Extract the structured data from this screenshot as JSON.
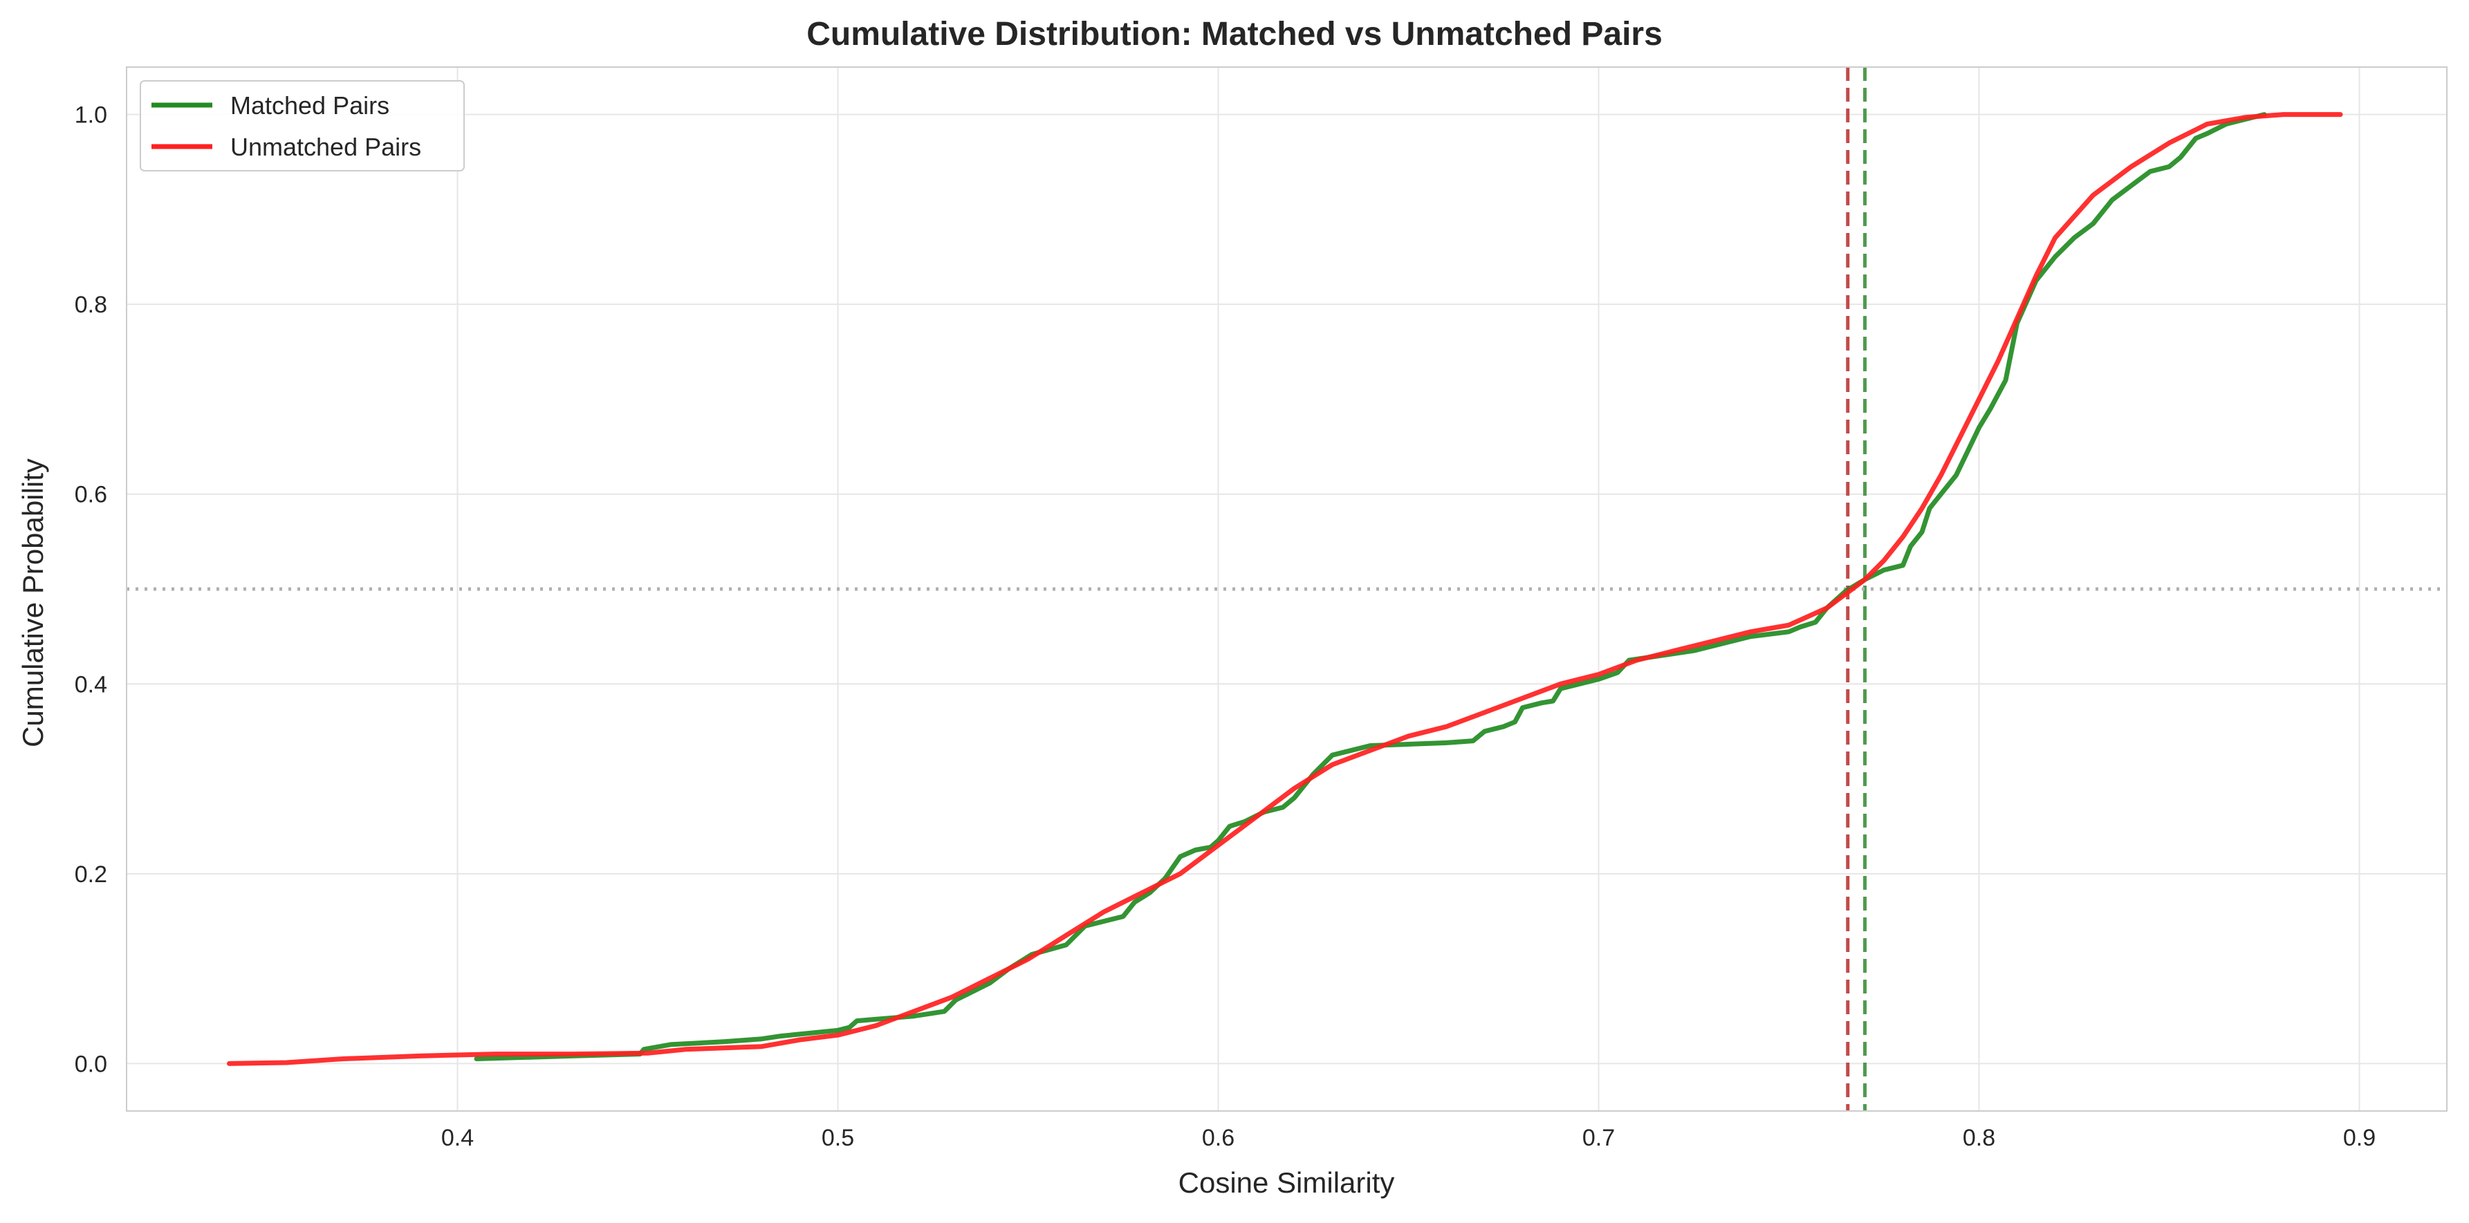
{
  "chart_data": {
    "type": "line",
    "title": "Cumulative Distribution: Matched vs Unmatched Pairs",
    "xlabel": "Cosine Similarity",
    "ylabel": "Cumulative Probability",
    "xlim": [
      0.313,
      0.923
    ],
    "ylim": [
      -0.05,
      1.05
    ],
    "xticks": [
      0.4,
      0.5,
      0.6,
      0.7,
      0.8,
      0.9
    ],
    "xtick_labels": [
      "0.4",
      "0.5",
      "0.6",
      "0.7",
      "0.8",
      "0.9"
    ],
    "yticks": [
      0.0,
      0.2,
      0.4,
      0.6,
      0.8,
      1.0
    ],
    "ytick_labels": [
      "0.0",
      "0.2",
      "0.4",
      "0.6",
      "0.8",
      "1.0"
    ],
    "grid": true,
    "legend_position": "upper-left",
    "series": [
      {
        "name": "Matched Pairs",
        "color": "#228B22",
        "x": [
          0.405,
          0.43,
          0.448,
          0.449,
          0.456,
          0.47,
          0.48,
          0.485,
          0.5,
          0.503,
          0.505,
          0.52,
          0.528,
          0.531,
          0.54,
          0.545,
          0.551,
          0.56,
          0.565,
          0.575,
          0.578,
          0.582,
          0.586,
          0.59,
          0.594,
          0.598,
          0.6,
          0.603,
          0.607,
          0.612,
          0.615,
          0.617,
          0.62,
          0.625,
          0.63,
          0.64,
          0.66,
          0.667,
          0.67,
          0.675,
          0.678,
          0.68,
          0.685,
          0.688,
          0.69,
          0.7,
          0.705,
          0.708,
          0.72,
          0.725,
          0.73,
          0.74,
          0.75,
          0.753,
          0.757,
          0.76,
          0.765,
          0.77,
          0.775,
          0.777,
          0.78,
          0.782,
          0.785,
          0.787,
          0.79,
          0.794,
          0.797,
          0.8,
          0.803,
          0.807,
          0.81,
          0.815,
          0.82,
          0.825,
          0.83,
          0.835,
          0.84,
          0.845,
          0.85,
          0.853,
          0.857,
          0.86,
          0.865,
          0.87,
          0.875
        ],
        "y": [
          0.005,
          0.008,
          0.01,
          0.015,
          0.02,
          0.023,
          0.026,
          0.029,
          0.035,
          0.038,
          0.045,
          0.05,
          0.055,
          0.067,
          0.085,
          0.1,
          0.115,
          0.125,
          0.145,
          0.155,
          0.17,
          0.18,
          0.195,
          0.218,
          0.225,
          0.228,
          0.235,
          0.25,
          0.255,
          0.265,
          0.268,
          0.27,
          0.28,
          0.305,
          0.325,
          0.335,
          0.338,
          0.34,
          0.35,
          0.355,
          0.36,
          0.375,
          0.38,
          0.382,
          0.395,
          0.405,
          0.412,
          0.425,
          0.432,
          0.435,
          0.44,
          0.45,
          0.455,
          0.46,
          0.465,
          0.48,
          0.498,
          0.51,
          0.52,
          0.522,
          0.525,
          0.545,
          0.56,
          0.585,
          0.6,
          0.62,
          0.645,
          0.67,
          0.69,
          0.72,
          0.78,
          0.825,
          0.85,
          0.87,
          0.885,
          0.91,
          0.925,
          0.94,
          0.945,
          0.955,
          0.975,
          0.98,
          0.99,
          0.995,
          1.0
        ]
      },
      {
        "name": "Unmatched Pairs",
        "color": "#FF2020",
        "x": [
          0.34,
          0.355,
          0.37,
          0.39,
          0.41,
          0.43,
          0.45,
          0.46,
          0.48,
          0.49,
          0.5,
          0.51,
          0.52,
          0.53,
          0.54,
          0.55,
          0.56,
          0.57,
          0.58,
          0.59,
          0.6,
          0.61,
          0.62,
          0.63,
          0.64,
          0.65,
          0.66,
          0.67,
          0.68,
          0.69,
          0.7,
          0.71,
          0.72,
          0.73,
          0.74,
          0.75,
          0.76,
          0.765,
          0.77,
          0.775,
          0.78,
          0.785,
          0.79,
          0.795,
          0.8,
          0.805,
          0.81,
          0.815,
          0.82,
          0.83,
          0.84,
          0.85,
          0.86,
          0.87,
          0.88,
          0.895
        ],
        "y": [
          0.0,
          0.001,
          0.005,
          0.008,
          0.01,
          0.01,
          0.011,
          0.015,
          0.018,
          0.025,
          0.03,
          0.04,
          0.055,
          0.07,
          0.09,
          0.11,
          0.135,
          0.16,
          0.18,
          0.2,
          0.23,
          0.26,
          0.29,
          0.315,
          0.33,
          0.345,
          0.355,
          0.37,
          0.385,
          0.4,
          0.41,
          0.425,
          0.435,
          0.445,
          0.455,
          0.462,
          0.48,
          0.495,
          0.51,
          0.53,
          0.555,
          0.585,
          0.62,
          0.66,
          0.7,
          0.74,
          0.785,
          0.83,
          0.87,
          0.915,
          0.945,
          0.97,
          0.99,
          0.997,
          1.0,
          1.0
        ]
      }
    ],
    "reference_lines": [
      {
        "orientation": "vertical",
        "x": 0.7655,
        "color": "#C24A4A",
        "style": "dashed"
      },
      {
        "orientation": "vertical",
        "x": 0.77,
        "color": "#4F9A4F",
        "style": "dashed"
      },
      {
        "orientation": "horizontal",
        "y": 0.5,
        "color": "#B0B0B0",
        "style": "dotted"
      }
    ]
  }
}
